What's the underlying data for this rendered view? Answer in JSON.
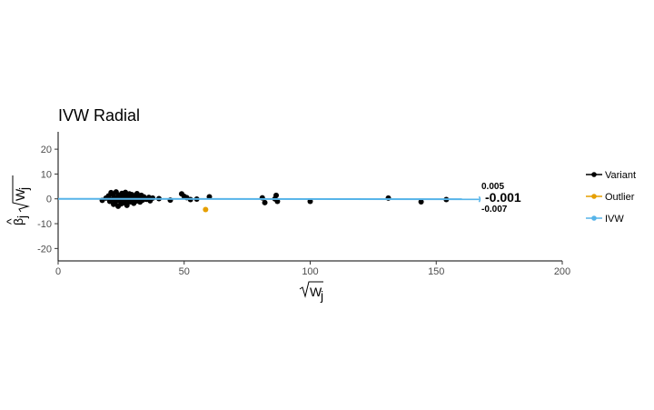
{
  "chart_data": {
    "type": "scatter",
    "title": "IVW Radial",
    "xlabel": "√W_j",
    "ylabel": "β̂_j √W_j",
    "xlim": [
      0,
      200
    ],
    "ylim": [
      -25,
      27
    ],
    "x_ticks": [
      0,
      50,
      100,
      150,
      200
    ],
    "y_ticks": [
      -20,
      -10,
      0,
      10,
      20
    ],
    "grid": false,
    "legend_position": "right",
    "legend": [
      {
        "label": "Variant",
        "color": "#000000"
      },
      {
        "label": "Outlier",
        "color": "#E69F00"
      },
      {
        "label": "IVW",
        "color": "#56B4E9"
      }
    ],
    "series": [
      {
        "name": "Variant",
        "color": "#000000",
        "points": [
          [
            17.5,
            -0.6
          ],
          [
            19.0,
            0.3
          ],
          [
            20.0,
            1.2
          ],
          [
            20.5,
            -1.0
          ],
          [
            21.0,
            2.5
          ],
          [
            21.3,
            -0.2
          ],
          [
            21.8,
            1.8
          ],
          [
            22.0,
            -2.2
          ],
          [
            22.3,
            0.6
          ],
          [
            22.7,
            -1.4
          ],
          [
            23.0,
            2.8
          ],
          [
            23.3,
            0.0
          ],
          [
            23.8,
            -3.0
          ],
          [
            24.0,
            1.5
          ],
          [
            24.3,
            -0.8
          ],
          [
            24.7,
            0.9
          ],
          [
            25.0,
            -2.0
          ],
          [
            25.3,
            2.2
          ],
          [
            25.7,
            -0.4
          ],
          [
            26.0,
            1.0
          ],
          [
            26.3,
            -1.6
          ],
          [
            26.7,
            2.6
          ],
          [
            27.0,
            0.2
          ],
          [
            27.3,
            -2.6
          ],
          [
            27.7,
            1.3
          ],
          [
            28.0,
            -0.7
          ],
          [
            28.3,
            2.0
          ],
          [
            28.7,
            -1.2
          ],
          [
            29.0,
            0.5
          ],
          [
            29.3,
            1.7
          ],
          [
            29.7,
            -0.3
          ],
          [
            30.0,
            -1.8
          ],
          [
            30.3,
            1.1
          ],
          [
            30.7,
            0.1
          ],
          [
            31.0,
            -0.9
          ],
          [
            31.3,
            2.1
          ],
          [
            32.0,
            0.4
          ],
          [
            32.5,
            -1.3
          ],
          [
            33.0,
            1.4
          ],
          [
            33.5,
            -0.5
          ],
          [
            34.0,
            0.8
          ],
          [
            35.0,
            -0.2
          ],
          [
            36.0,
            0.6
          ],
          [
            36.5,
            -0.8
          ],
          [
            37.5,
            0.3
          ],
          [
            40.0,
            0.1
          ],
          [
            44.5,
            -0.5
          ],
          [
            49.0,
            2.0
          ],
          [
            50.0,
            1.0
          ],
          [
            51.0,
            0.5
          ],
          [
            52.5,
            -0.3
          ],
          [
            55.0,
            -0.1
          ],
          [
            60.0,
            0.8
          ],
          [
            81.0,
            0.4
          ],
          [
            82.0,
            -1.5
          ],
          [
            86.0,
            0.0
          ],
          [
            86.5,
            1.4
          ],
          [
            87.0,
            -1.0
          ],
          [
            100.0,
            -1.0
          ],
          [
            131.0,
            0.3
          ],
          [
            144.0,
            -1.2
          ],
          [
            154.0,
            -0.3
          ]
        ]
      },
      {
        "name": "Outlier",
        "color": "#E69F00",
        "points": [
          [
            58.5,
            -4.3
          ]
        ]
      }
    ],
    "fit_line": {
      "name": "IVW",
      "color": "#56B4E9",
      "slope": -0.001,
      "x_range": [
        0,
        167
      ]
    },
    "annotations": {
      "upper": "0.005",
      "estimate": "-0.001",
      "lower": "-0.007"
    }
  }
}
